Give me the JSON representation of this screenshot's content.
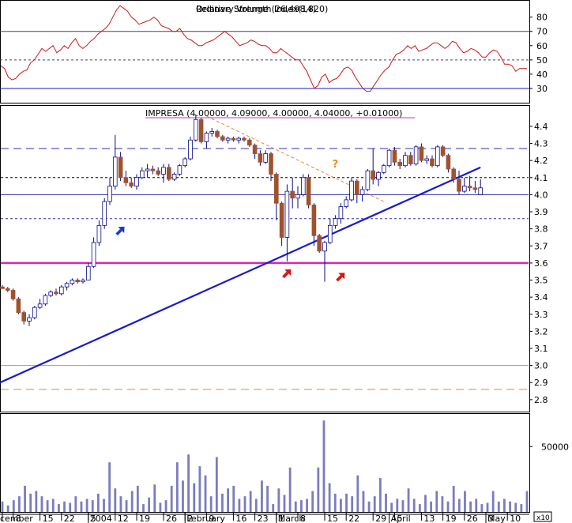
{
  "chart_data": [
    {
      "type": "line",
      "title": "Relative Strength Index(14)",
      "overlay_text": "Ordinary Volume (26,498,820)",
      "ylim": [
        20,
        92
      ],
      "yticks": [
        30,
        40,
        50,
        60,
        70,
        80
      ],
      "reference_levels": [
        30,
        50,
        70
      ],
      "series": [
        {
          "values": [
            46,
            44,
            38,
            36,
            37,
            40,
            42,
            43,
            48,
            50,
            54,
            58,
            56,
            58,
            60,
            55,
            57,
            60,
            58,
            62,
            65,
            60,
            58,
            60,
            63,
            65,
            68,
            70,
            72,
            75,
            80,
            85,
            88,
            86,
            84,
            80,
            78,
            75,
            76,
            77,
            78,
            80,
            78,
            74,
            73,
            72,
            70,
            70,
            72,
            68,
            65,
            64,
            62,
            60,
            60,
            62,
            63,
            64,
            66,
            68,
            70,
            68,
            66,
            63,
            60,
            61,
            62,
            64,
            63,
            61,
            60,
            60,
            58,
            55,
            55,
            58,
            56,
            54,
            52,
            50,
            50,
            46,
            42,
            36,
            30,
            32,
            38,
            40,
            34,
            36,
            37,
            40,
            44,
            45,
            43,
            38,
            34,
            30,
            28,
            28,
            32,
            36,
            40,
            43,
            45,
            50,
            54,
            55,
            57,
            60,
            58,
            60,
            56,
            57,
            58,
            60,
            62,
            62,
            60,
            58,
            60,
            63,
            62,
            58,
            55,
            56,
            58,
            57,
            55,
            52,
            52,
            55,
            57,
            56,
            52,
            47,
            47,
            46,
            42,
            44,
            44,
            44
          ]
        }
      ]
    },
    {
      "type": "line",
      "title": "IMPRESA (4.00000, 4.09000, 4.00000, 4.04000, +0.01000)",
      "ylim": [
        2.73,
        4.52
      ],
      "yticks": [
        2.8,
        2.9,
        3.0,
        3.1,
        3.2,
        3.3,
        3.4,
        3.5,
        3.6,
        3.7,
        3.8,
        3.9,
        4.0,
        4.1,
        4.2,
        4.3,
        4.4
      ],
      "candles": [
        [
          3.46,
          3.47,
          3.45,
          3.45
        ],
        [
          3.45,
          3.46,
          3.43,
          3.44
        ],
        [
          3.44,
          3.45,
          3.38,
          3.39
        ],
        [
          3.39,
          3.4,
          3.3,
          3.31
        ],
        [
          3.31,
          3.32,
          3.24,
          3.26
        ],
        [
          3.26,
          3.3,
          3.23,
          3.28
        ],
        [
          3.28,
          3.35,
          3.27,
          3.34
        ],
        [
          3.34,
          3.39,
          3.33,
          3.36
        ],
        [
          3.36,
          3.42,
          3.35,
          3.41
        ],
        [
          3.41,
          3.44,
          3.4,
          3.43
        ],
        [
          3.43,
          3.45,
          3.41,
          3.42
        ],
        [
          3.42,
          3.47,
          3.41,
          3.46
        ],
        [
          3.46,
          3.49,
          3.44,
          3.48
        ],
        [
          3.48,
          3.51,
          3.47,
          3.5
        ],
        [
          3.5,
          3.51,
          3.48,
          3.49
        ],
        [
          3.49,
          3.51,
          3.48,
          3.5
        ],
        [
          3.5,
          3.6,
          3.5,
          3.58
        ],
        [
          3.58,
          3.75,
          3.57,
          3.72
        ],
        [
          3.72,
          3.85,
          3.7,
          3.82
        ],
        [
          3.82,
          3.98,
          3.8,
          3.96
        ],
        [
          3.96,
          4.1,
          3.94,
          4.05
        ],
        [
          4.05,
          4.35,
          4.03,
          4.22
        ],
        [
          4.22,
          4.25,
          4.08,
          4.1
        ],
        [
          4.1,
          4.14,
          4.05,
          4.07
        ],
        [
          4.07,
          4.1,
          4.04,
          4.05
        ],
        [
          4.05,
          4.12,
          4.03,
          4.1
        ],
        [
          4.1,
          4.16,
          4.09,
          4.14
        ],
        [
          4.14,
          4.18,
          4.1,
          4.15
        ],
        [
          4.15,
          4.17,
          4.12,
          4.14
        ],
        [
          4.14,
          4.16,
          4.11,
          4.12
        ],
        [
          4.12,
          4.18,
          4.07,
          4.16
        ],
        [
          4.16,
          4.18,
          4.08,
          4.09
        ],
        [
          4.09,
          4.13,
          4.08,
          4.12
        ],
        [
          4.12,
          4.18,
          4.11,
          4.17
        ],
        [
          4.17,
          4.22,
          4.16,
          4.21
        ],
        [
          4.21,
          4.34,
          4.2,
          4.32
        ],
        [
          4.32,
          4.47,
          4.31,
          4.44
        ],
        [
          4.44,
          4.45,
          4.3,
          4.31
        ],
        [
          4.31,
          4.37,
          4.27,
          4.36
        ],
        [
          4.36,
          4.39,
          4.34,
          4.37
        ],
        [
          4.37,
          4.38,
          4.33,
          4.34
        ],
        [
          4.34,
          4.35,
          4.31,
          4.32
        ],
        [
          4.32,
          4.34,
          4.3,
          4.33
        ],
        [
          4.33,
          4.34,
          4.31,
          4.32
        ],
        [
          4.32,
          4.34,
          4.3,
          4.33
        ],
        [
          4.33,
          4.34,
          4.31,
          4.32
        ],
        [
          4.32,
          4.33,
          4.28,
          4.29
        ],
        [
          4.29,
          4.3,
          4.21,
          4.24
        ],
        [
          4.24,
          4.26,
          4.17,
          4.19
        ],
        [
          4.19,
          4.26,
          4.18,
          4.24
        ],
        [
          4.24,
          4.25,
          4.08,
          4.12
        ],
        [
          4.12,
          4.13,
          3.85,
          3.95
        ],
        [
          3.95,
          3.96,
          3.7,
          3.75
        ],
        [
          3.75,
          4.06,
          3.61,
          4.02
        ],
        [
          4.02,
          4.1,
          3.92,
          3.98
        ],
        [
          3.98,
          4.05,
          3.92,
          4.0
        ],
        [
          4.0,
          4.12,
          3.99,
          4.1
        ],
        [
          4.1,
          4.12,
          3.92,
          3.94
        ],
        [
          3.94,
          3.95,
          3.7,
          3.76
        ],
        [
          3.76,
          3.77,
          3.66,
          3.67
        ],
        [
          3.67,
          3.73,
          3.49,
          3.72
        ],
        [
          3.72,
          3.86,
          3.71,
          3.82
        ],
        [
          3.82,
          3.88,
          3.8,
          3.86
        ],
        [
          3.86,
          3.95,
          3.83,
          3.93
        ],
        [
          3.93,
          3.99,
          3.92,
          3.97
        ],
        [
          3.97,
          4.1,
          3.96,
          4.08
        ],
        [
          4.08,
          4.09,
          3.95,
          4.0
        ],
        [
          4.0,
          4.05,
          3.96,
          4.03
        ],
        [
          4.03,
          4.15,
          4.02,
          4.14
        ],
        [
          4.14,
          4.27,
          4.06,
          4.09
        ],
        [
          4.09,
          4.14,
          4.05,
          4.13
        ],
        [
          4.13,
          4.18,
          4.12,
          4.17
        ],
        [
          4.17,
          4.27,
          4.16,
          4.26
        ],
        [
          4.26,
          4.28,
          4.17,
          4.19
        ],
        [
          4.19,
          4.21,
          4.15,
          4.17
        ],
        [
          4.17,
          4.25,
          4.16,
          4.23
        ],
        [
          4.23,
          4.25,
          4.17,
          4.18
        ],
        [
          4.18,
          4.29,
          4.17,
          4.28
        ],
        [
          4.28,
          4.3,
          4.19,
          4.2
        ],
        [
          4.2,
          4.23,
          4.18,
          4.21
        ],
        [
          4.21,
          4.23,
          4.16,
          4.17
        ],
        [
          4.17,
          4.29,
          4.16,
          4.28
        ],
        [
          4.28,
          4.29,
          4.22,
          4.23
        ],
        [
          4.23,
          4.24,
          4.13,
          4.15
        ],
        [
          4.15,
          4.16,
          4.07,
          4.09
        ],
        [
          4.09,
          4.14,
          4.0,
          4.02
        ],
        [
          4.02,
          4.1,
          4.01,
          4.05
        ],
        [
          4.05,
          4.11,
          4.02,
          4.04
        ],
        [
          4.04,
          4.08,
          4.01,
          4.03
        ],
        [
          4.0,
          4.09,
          4.0,
          4.04
        ]
      ],
      "horizontal_levels": [
        4.27,
        4.1,
        4.0,
        3.86,
        3.6,
        3.0,
        2.86
      ],
      "trendlines": [
        {
          "from": {
            "bar": 0,
            "value": 2.9
          },
          "to": {
            "bar": 89,
            "value": 4.16
          }
        },
        {
          "from": {
            "bar": 38,
            "value": 4.46
          },
          "to": {
            "bar": 71,
            "value": 3.96
          }
        }
      ],
      "annotations": [
        {
          "text": "?",
          "bar": 62,
          "value": 4.16
        }
      ],
      "arrows": [
        {
          "color": "blue",
          "bar": 22,
          "value": 3.79
        },
        {
          "color": "red",
          "bar": 53,
          "value": 3.54
        },
        {
          "color": "red",
          "bar": 63,
          "value": 3.52
        }
      ]
    },
    {
      "type": "bar",
      "yticks": [
        50000
      ],
      "ylim": [
        0,
        75000
      ],
      "multiplier_label": "x10",
      "values": [
        8000,
        5000,
        9000,
        12000,
        20000,
        14000,
        16000,
        12000,
        9000,
        10000,
        6000,
        8000,
        7000,
        12000,
        8000,
        10000,
        9000,
        14000,
        10000,
        38000,
        18000,
        12000,
        9000,
        16000,
        20000,
        6000,
        11000,
        21000,
        7000,
        9000,
        20000,
        38000,
        24000,
        44000,
        22000,
        35000,
        28000,
        12000,
        42000,
        14000,
        18000,
        20000,
        10000,
        12000,
        16000,
        10000,
        24000,
        20000,
        6000,
        18000,
        13000,
        34000,
        8000,
        9000,
        10000,
        16000,
        34000,
        70000,
        22000,
        14000,
        10000,
        14000,
        12000,
        28000,
        16000,
        8000,
        12000,
        26000,
        14000,
        7000,
        10000,
        9000,
        18000,
        10000,
        6000,
        13000,
        8000,
        16000,
        12000,
        8000,
        20000,
        10000,
        16000,
        8000,
        10000,
        6000,
        7000,
        16000,
        8000,
        10000,
        8000,
        7000,
        6000,
        16000
      ]
    }
  ],
  "x_axis": {
    "ticks": [
      {
        "label": "cember",
        "bar": 0
      },
      {
        "label": "8",
        "bar": 2
      },
      {
        "label": "15",
        "bar": 7
      },
      {
        "label": "22",
        "bar": 11
      },
      {
        "label": "5",
        "bar": 16
      },
      {
        "label": "12",
        "bar": 21
      },
      {
        "label": "19",
        "bar": 25
      },
      {
        "label": "26",
        "bar": 30
      },
      {
        "label": "2",
        "bar": 34
      },
      {
        "label": "9",
        "bar": 38
      },
      {
        "label": "16",
        "bar": 43
      },
      {
        "label": "23",
        "bar": 47
      },
      {
        "label": "1",
        "bar": 51
      },
      {
        "label": "8",
        "bar": 55
      },
      {
        "label": "15",
        "bar": 60
      },
      {
        "label": "22",
        "bar": 64
      },
      {
        "label": "29",
        "bar": 69
      },
      {
        "label": "5",
        "bar": 73
      },
      {
        "label": "13",
        "bar": 78
      },
      {
        "label": "19",
        "bar": 82
      },
      {
        "label": "26",
        "bar": 86
      },
      {
        "label": "3",
        "bar": 90
      },
      {
        "label": "10",
        "bar": 94
      }
    ],
    "period_labels": [
      {
        "label": "2004",
        "bar": 16
      },
      {
        "label": "February",
        "bar": 34
      },
      {
        "label": "March",
        "bar": 51
      },
      {
        "label": "April",
        "bar": 72
      },
      {
        "label": "May",
        "bar": 90
      }
    ]
  },
  "colors": {
    "up_candle": "#ffffff",
    "down_candle": "#a0522d",
    "candle_outline": "#0a0a8c",
    "trendline": "#1a1acc",
    "support_line": "#e020c8",
    "rsi_line": "#cc1a1a",
    "volume_bar": "#7b7bc0",
    "dashed_level": "#3030b0",
    "orange_level": "#e08a3c",
    "question_mark": "#f08c28",
    "arrow_blue": "#1a3acc",
    "arrow_red": "#dd1010",
    "title_underline": "#cc33cc"
  }
}
